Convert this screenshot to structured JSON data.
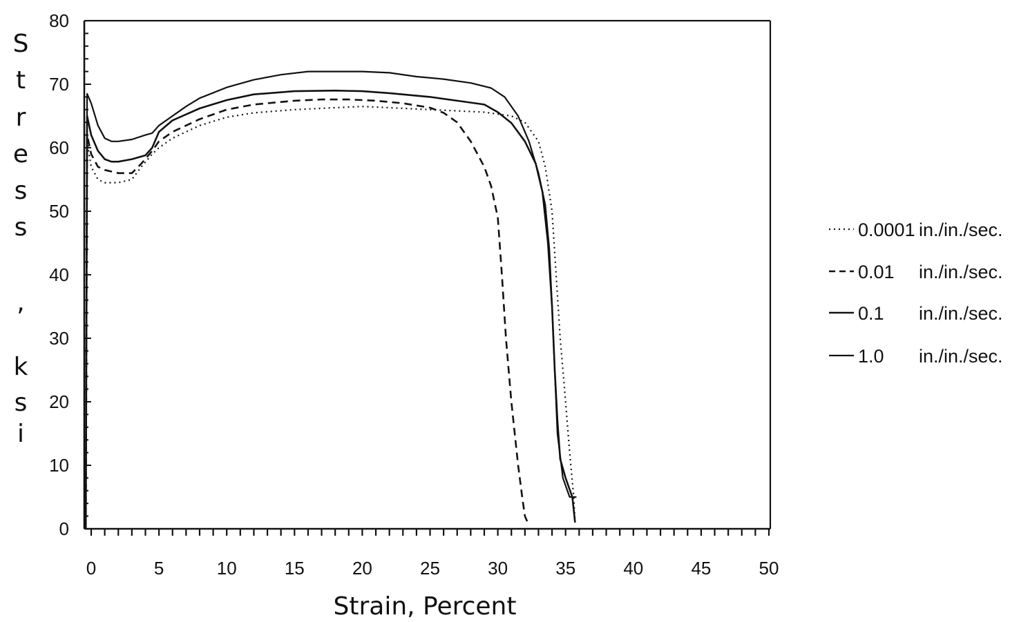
{
  "chart_data": {
    "type": "line",
    "title": "",
    "xlabel": "Strain, Percent",
    "ylabel_letters": [
      "S",
      "t",
      "r",
      "e",
      "s",
      "s",
      ",",
      "k",
      "s",
      "i"
    ],
    "xlim": [
      0,
      50
    ],
    "ylim": [
      0,
      80
    ],
    "x_ticks": [
      0,
      5,
      10,
      15,
      20,
      25,
      30,
      35,
      40,
      45,
      50
    ],
    "x_tick_labels": [
      "0",
      "5",
      "10",
      "15",
      "20",
      "25",
      "30",
      "35",
      "40",
      "45",
      "50"
    ],
    "y_ticks": [
      0,
      10,
      20,
      30,
      40,
      50,
      60,
      70,
      80
    ],
    "y_tick_labels": [
      "0",
      "10",
      "20",
      "30",
      "40",
      "50",
      "60",
      "70",
      "80"
    ],
    "grid": false,
    "legend_position": "right",
    "series": [
      {
        "name": "0.0001",
        "unit": "in./in./sec.",
        "style": "dotted",
        "x": [
          -0.4,
          -0.3,
          0.0,
          0.5,
          1.0,
          2.0,
          3.0,
          3.7,
          4.5,
          5.0,
          6.0,
          8.0,
          10.0,
          12.0,
          15.0,
          18.0,
          20.0,
          22.0,
          25.0,
          27.0,
          29.0,
          31.0,
          32.0,
          33.0,
          33.5,
          34.0,
          34.3,
          34.6,
          35.0,
          35.3,
          35.6,
          35.7
        ],
        "y": [
          0,
          61,
          57,
          55,
          54.5,
          54.5,
          55,
          57,
          59,
          60,
          61.5,
          63.5,
          64.8,
          65.5,
          66.0,
          66.3,
          66.5,
          66.3,
          66.0,
          65.8,
          65.6,
          65.0,
          64.0,
          61.0,
          57.0,
          50.0,
          40.0,
          30.0,
          20.0,
          12.0,
          5.0,
          1.0
        ]
      },
      {
        "name": "0.01",
        "unit": "in./in./sec.",
        "style": "dashed",
        "x": [
          -0.4,
          -0.3,
          0.0,
          0.5,
          1.0,
          2.0,
          3.0,
          3.7,
          4.5,
          5.0,
          6.0,
          8.0,
          10.0,
          12.0,
          15.0,
          17.0,
          19.0,
          21.0,
          23.0,
          25.0,
          26.0,
          27.0,
          28.0,
          29.0,
          29.5,
          30.0,
          30.3,
          30.6,
          31.0,
          31.5,
          31.8,
          32.0,
          32.2
        ],
        "y": [
          0,
          62,
          59,
          57,
          56.5,
          56,
          56,
          57.5,
          59.5,
          61,
          62.5,
          64.5,
          66.0,
          66.8,
          67.4,
          67.6,
          67.6,
          67.4,
          67.0,
          66.3,
          65.5,
          64.0,
          61.0,
          57.0,
          54.0,
          49.0,
          40.0,
          30.0,
          20.0,
          10.0,
          5.0,
          2.0,
          1.0
        ]
      },
      {
        "name": "0.1",
        "unit": "in./in./sec.",
        "style": "solid",
        "x": [
          -0.4,
          -0.3,
          0.0,
          0.5,
          1.0,
          1.5,
          2.0,
          3.0,
          4.0,
          4.5,
          5.0,
          6.0,
          8.0,
          10.0,
          12.0,
          15.0,
          18.0,
          20.0,
          22.0,
          25.0,
          27.0,
          29.0,
          30.0,
          31.0,
          32.0,
          32.8,
          33.3,
          33.7,
          34.0,
          34.2,
          34.4,
          34.6,
          35.0,
          35.5,
          35.7
        ],
        "y": [
          0,
          65,
          62,
          59.5,
          58.2,
          57.8,
          57.8,
          58.2,
          58.8,
          60,
          62.5,
          64.3,
          66.2,
          67.5,
          68.4,
          68.9,
          69.0,
          68.9,
          68.6,
          68.0,
          67.4,
          66.8,
          65.6,
          63.9,
          61.0,
          57.5,
          53.0,
          45.0,
          35.0,
          25.0,
          17.0,
          11.0,
          8.0,
          5.0,
          1.0
        ]
      },
      {
        "name": "1.0",
        "unit": "in./in./sec.",
        "style": "dashdot",
        "x": [
          -0.4,
          -0.3,
          0.0,
          0.5,
          1.0,
          1.5,
          2.0,
          3.0,
          4.0,
          4.5,
          5.0,
          6.0,
          7.0,
          8.0,
          10.0,
          12.0,
          14.0,
          16.0,
          18.0,
          20.0,
          22.0,
          24.0,
          26.0,
          28.0,
          29.5,
          30.5,
          31.5,
          32.3,
          33.0,
          33.5,
          33.8,
          34.0,
          34.2,
          34.4,
          34.8,
          35.3,
          35.8
        ],
        "y": [
          0,
          68.5,
          67,
          63.5,
          61.5,
          61.0,
          61.0,
          61.3,
          62.0,
          62.3,
          63.5,
          65.0,
          66.5,
          67.8,
          69.5,
          70.7,
          71.5,
          72.0,
          72.0,
          72.0,
          71.8,
          71.2,
          70.8,
          70.2,
          69.4,
          68.0,
          65.0,
          61.0,
          56.0,
          51.0,
          44.0,
          35.0,
          25.0,
          15.0,
          8.0,
          5.0,
          5.0
        ]
      }
    ]
  }
}
